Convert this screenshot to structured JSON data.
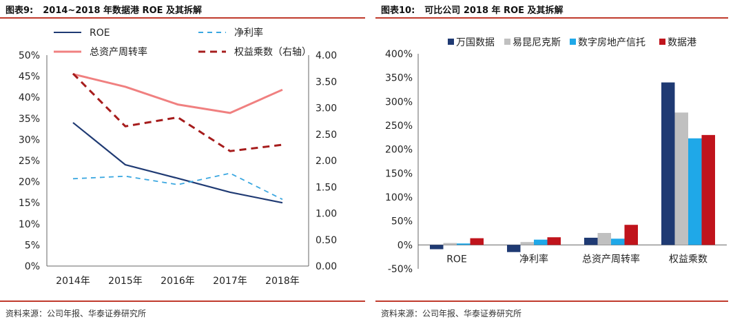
{
  "left": {
    "title_num": "图表9:",
    "title": "2014~2018 年数据港 ROE 及其拆解",
    "source": "资料来源：公司年报、华泰证券研究所",
    "chart_data": {
      "type": "line",
      "x": [
        "2014年",
        "2015年",
        "2016年",
        "2017年",
        "2018年"
      ],
      "ylim": [
        0,
        0.5
      ],
      "y2lim": [
        0,
        4
      ],
      "y_ticks": [
        "0%",
        "5%",
        "10%",
        "15%",
        "20%",
        "25%",
        "30%",
        "35%",
        "40%",
        "45%",
        "50%"
      ],
      "y2_ticks": [
        "0.00",
        "0.50",
        "1.00",
        "1.50",
        "2.00",
        "2.50",
        "3.00",
        "3.50",
        "4.00"
      ],
      "legend": "top",
      "series": [
        {
          "name": "ROE",
          "axis": "left",
          "color": "#1f3a73",
          "style": "solid",
          "values": [
            0.34,
            0.24,
            0.208,
            0.175,
            0.15
          ]
        },
        {
          "name": "净利率",
          "axis": "left",
          "color": "#3aa7e0",
          "style": "dashed",
          "values": [
            0.207,
            0.213,
            0.193,
            0.22,
            0.158
          ]
        },
        {
          "name": "总资产周转率",
          "axis": "left",
          "color": "#f08080",
          "style": "solid",
          "values": [
            0.455,
            0.425,
            0.383,
            0.363,
            0.418
          ]
        },
        {
          "name": "权益乘数（右轴）",
          "axis": "right",
          "color": "#a61c1c",
          "style": "dashed",
          "values": [
            3.65,
            2.65,
            2.82,
            2.18,
            2.3
          ]
        }
      ]
    }
  },
  "right": {
    "title_num": "图表10:",
    "title": "可比公司 2018 年 ROE 及其拆解",
    "source": "资料来源：公司年报、华泰证券研究所",
    "chart_data": {
      "type": "bar",
      "categories": [
        "ROE",
        "净利率",
        "总资产周转率",
        "权益乘数"
      ],
      "ylim": [
        -0.5,
        4.0
      ],
      "y_ticks": [
        "-50%",
        "0%",
        "50%",
        "100%",
        "150%",
        "200%",
        "250%",
        "300%",
        "350%",
        "400%"
      ],
      "legend": "top",
      "series": [
        {
          "name": "万国数据",
          "color": "#1f3a73",
          "values": [
            -0.09,
            -0.15,
            0.15,
            3.4
          ]
        },
        {
          "name": "易昆尼克斯",
          "color": "#c0c0c0",
          "values": [
            0.04,
            0.06,
            0.25,
            2.77
          ]
        },
        {
          "name": "数字房地产信托",
          "color": "#1fa8e8",
          "values": [
            0.03,
            0.11,
            0.13,
            2.23
          ]
        },
        {
          "name": "数据港",
          "color": "#c0141c",
          "values": [
            0.14,
            0.16,
            0.42,
            2.3
          ]
        }
      ]
    }
  }
}
